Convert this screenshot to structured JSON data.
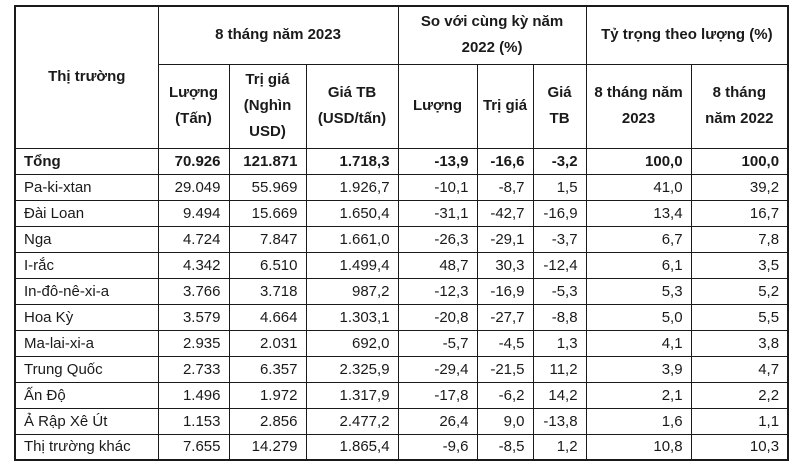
{
  "colors": {
    "border": "#1a1a1a",
    "text": "#1a1a1a",
    "background": "#ffffff"
  },
  "chart_data": {
    "type": "table",
    "header": {
      "market": "Thị trường",
      "groups": [
        {
          "label": "8 tháng năm 2023",
          "span": 3
        },
        {
          "label": "So với cùng kỳ năm 2022 (%)",
          "span": 3
        },
        {
          "label": "Tỷ trọng theo lượng (%)",
          "span": 2
        }
      ],
      "subheaders": [
        "Lượng (Tấn)",
        "Trị giá (Nghìn USD)",
        "Giá TB (USD/tấn)",
        "Lượng",
        "Trị giá",
        "Giá TB",
        "8 tháng năm 2023",
        "8 tháng năm 2022"
      ]
    },
    "rows": [
      {
        "market": "Tổng",
        "bold": true,
        "values": [
          "70.926",
          "121.871",
          "1.718,3",
          "-13,9",
          "-16,6",
          "-3,2",
          "100,0",
          "100,0"
        ]
      },
      {
        "market": "Pa-ki-xtan",
        "bold": false,
        "values": [
          "29.049",
          "55.969",
          "1.926,7",
          "-10,1",
          "-8,7",
          "1,5",
          "41,0",
          "39,2"
        ]
      },
      {
        "market": "Đài Loan",
        "bold": false,
        "values": [
          "9.494",
          "15.669",
          "1.650,4",
          "-31,1",
          "-42,7",
          "-16,9",
          "13,4",
          "16,7"
        ]
      },
      {
        "market": "Nga",
        "bold": false,
        "values": [
          "4.724",
          "7.847",
          "1.661,0",
          "-26,3",
          "-29,1",
          "-3,7",
          "6,7",
          "7,8"
        ]
      },
      {
        "market": "I-rắc",
        "bold": false,
        "values": [
          "4.342",
          "6.510",
          "1.499,4",
          "48,7",
          "30,3",
          "-12,4",
          "6,1",
          "3,5"
        ]
      },
      {
        "market": "In-đô-nê-xi-a",
        "bold": false,
        "values": [
          "3.766",
          "3.718",
          "987,2",
          "-12,3",
          "-16,9",
          "-5,3",
          "5,3",
          "5,2"
        ]
      },
      {
        "market": "Hoa Kỳ",
        "bold": false,
        "values": [
          "3.579",
          "4.664",
          "1.303,1",
          "-20,8",
          "-27,7",
          "-8,8",
          "5,0",
          "5,5"
        ]
      },
      {
        "market": "Ma-lai-xi-a",
        "bold": false,
        "values": [
          "2.935",
          "2.031",
          "692,0",
          "-5,7",
          "-4,5",
          "1,3",
          "4,1",
          "3,8"
        ]
      },
      {
        "market": "Trung Quốc",
        "bold": false,
        "values": [
          "2.733",
          "6.357",
          "2.325,9",
          "-29,4",
          "-21,5",
          "11,2",
          "3,9",
          "4,7"
        ]
      },
      {
        "market": "Ấn Độ",
        "bold": false,
        "values": [
          "1.496",
          "1.972",
          "1.317,9",
          "-17,8",
          "-6,2",
          "14,2",
          "2,1",
          "2,2"
        ]
      },
      {
        "market": "Ả Rập Xê Út",
        "bold": false,
        "values": [
          "1.153",
          "2.856",
          "2.477,2",
          "26,4",
          "9,0",
          "-13,8",
          "1,6",
          "1,1"
        ]
      },
      {
        "market": "Thị trường khác",
        "bold": false,
        "values": [
          "7.655",
          "14.279",
          "1.865,4",
          "-9,6",
          "-8,5",
          "1,2",
          "10,8",
          "10,3"
        ]
      }
    ]
  }
}
